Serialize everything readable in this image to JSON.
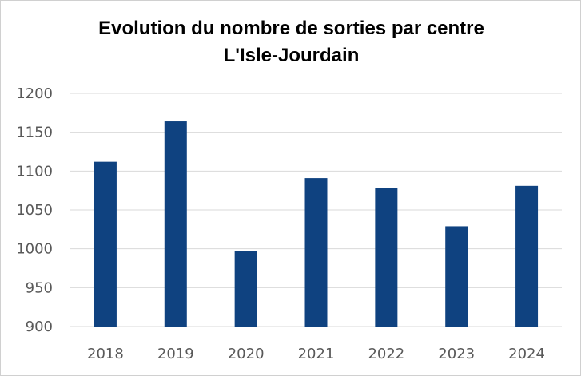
{
  "chart_data": {
    "type": "bar",
    "title_lines": [
      "Evolution du nombre de sorties par centre",
      "L'Isle-Jourdain"
    ],
    "categories": [
      "2018",
      "2019",
      "2020",
      "2021",
      "2022",
      "2023",
      "2024"
    ],
    "values": [
      1112,
      1164,
      997,
      1091,
      1078,
      1029,
      1081
    ],
    "xlabel": "",
    "ylabel": "",
    "ylim": [
      900,
      1200
    ],
    "yticks": [
      "900",
      "950",
      "1000",
      "1050",
      "1100",
      "1150",
      "1200"
    ],
    "grid": true,
    "legend": "none",
    "bar_color": "#0F4280"
  }
}
